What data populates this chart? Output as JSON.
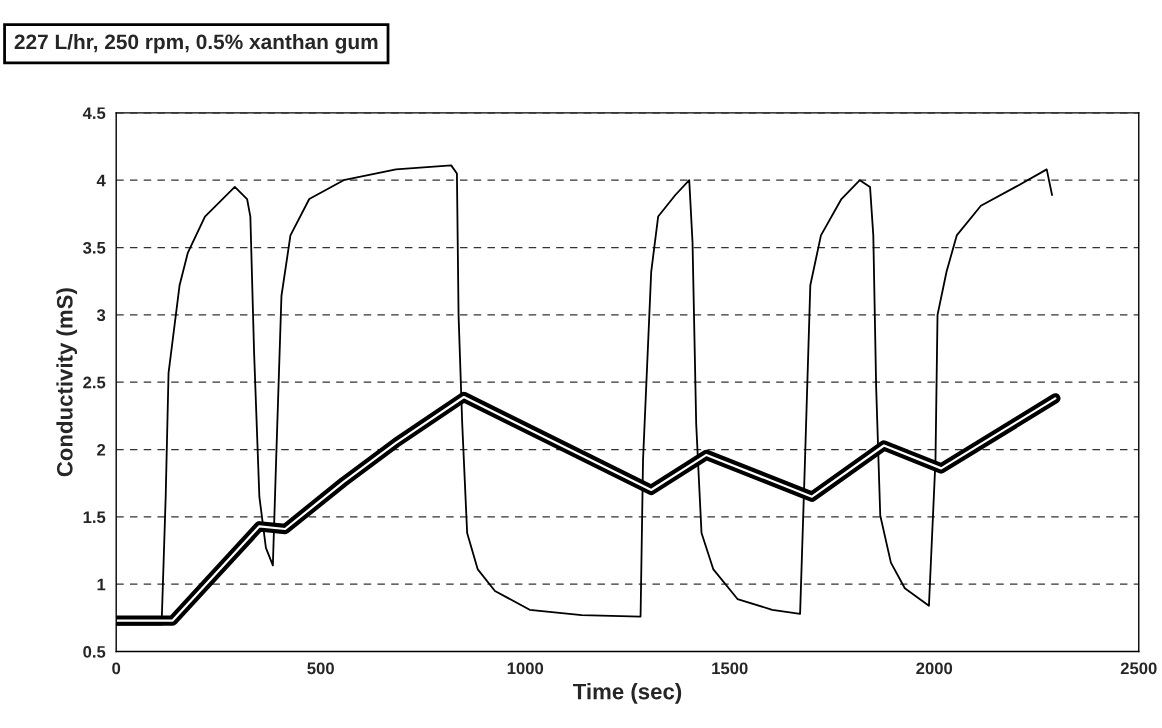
{
  "chart_data": {
    "type": "line",
    "title": "227 L/hr, 250 rpm, 0.5% xanthan gum",
    "xlabel": "Time (sec)",
    "ylabel": "Conductivity (mS)",
    "xlim": [
      0,
      2500
    ],
    "xticks": [
      0,
      500,
      1000,
      1500,
      2000,
      2500
    ],
    "ylim": [
      0.5,
      4.5
    ],
    "yticks": [
      0.5,
      1,
      1.5,
      2,
      2.5,
      3,
      3.5,
      4,
      4.5
    ],
    "grid": "y",
    "legend": false,
    "series": [
      {
        "color": "#000000",
        "x": [
          0,
          50,
          111,
          121,
          128,
          155,
          175,
          217,
          260,
          290,
          320,
          328,
          337,
          350,
          366,
          383,
          391,
          404,
          426,
          472,
          556,
          684,
          819,
          833,
          837,
          846,
          858,
          884,
          926,
          1011,
          1138,
          1282,
          1288,
          1308,
          1325,
          1367,
          1401,
          1409,
          1418,
          1431,
          1460,
          1519,
          1604,
          1672,
          1684,
          1697,
          1723,
          1773,
          1818,
          1843,
          1851,
          1858,
          1868,
          1894,
          1928,
          1987,
          2003,
          2008,
          2030,
          2055,
          2114,
          2199,
          2275,
          2288
        ],
        "values": [
          0.7,
          0.7,
          0.7,
          1.65,
          2.57,
          3.22,
          3.46,
          3.73,
          3.86,
          3.95,
          3.86,
          3.73,
          2.73,
          1.65,
          1.27,
          1.14,
          1.92,
          3.14,
          3.59,
          3.86,
          4.0,
          4.08,
          4.11,
          4.05,
          3.0,
          2.19,
          1.38,
          1.11,
          0.95,
          0.81,
          0.77,
          0.76,
          1.92,
          3.32,
          3.73,
          3.89,
          4.0,
          3.54,
          2.19,
          1.38,
          1.11,
          0.89,
          0.81,
          0.78,
          1.92,
          3.22,
          3.59,
          3.86,
          4.0,
          3.95,
          3.59,
          2.46,
          1.51,
          1.16,
          0.97,
          0.84,
          1.92,
          3.0,
          3.32,
          3.59,
          3.81,
          3.95,
          4.08,
          3.89
        ]
      },
      {
        "color": "#000000",
        "x": [
          0,
          138,
          350,
          413,
          556,
          684,
          850,
          1308,
          1443,
          1701,
          1877,
          2017,
          2296
        ],
        "values": [
          0.73,
          0.73,
          1.43,
          1.41,
          1.76,
          2.05,
          2.39,
          1.7,
          1.96,
          1.65,
          2.03,
          1.86,
          2.38
        ]
      }
    ]
  }
}
